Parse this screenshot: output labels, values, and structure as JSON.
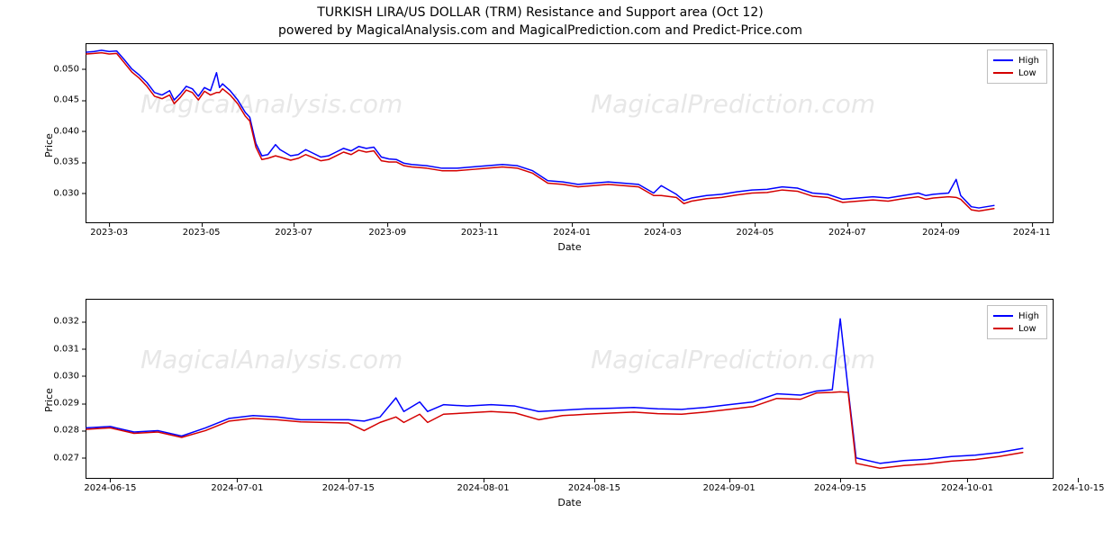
{
  "titles": {
    "main": "TURKISH LIRA/US DOLLAR (TRM) Resistance and Support area (Oct 12)",
    "sub": "powered by MagicalAnalysis.com and MagicalPrediction.com and Predict-Price.com"
  },
  "colors": {
    "high": "#0000ff",
    "low": "#d40000",
    "axis": "#000000",
    "legend_border": "#bfbfbf",
    "background": "#ffffff",
    "watermark": "rgba(120,120,120,0.18)"
  },
  "legend": {
    "high_label": "High",
    "low_label": "Low"
  },
  "watermarks": {
    "left": "MagicalAnalysis.com",
    "right": "MagicalPrediction.com"
  },
  "top_chart": {
    "type": "line",
    "ylabel": "Price",
    "xlabel": "Date",
    "label_fontsize": 11,
    "line_width": 1.5,
    "ylim": [
      0.025,
      0.054
    ],
    "yticks": [
      {
        "v": 0.03,
        "label": "0.030"
      },
      {
        "v": 0.035,
        "label": "0.035"
      },
      {
        "v": 0.04,
        "label": "0.040"
      },
      {
        "v": 0.045,
        "label": "0.045"
      },
      {
        "v": 0.05,
        "label": "0.050"
      }
    ],
    "xlim": [
      0,
      640
    ],
    "xticks": [
      {
        "v": 15,
        "label": "2023-03"
      },
      {
        "v": 76,
        "label": "2023-05"
      },
      {
        "v": 137,
        "label": "2023-07"
      },
      {
        "v": 199,
        "label": "2023-09"
      },
      {
        "v": 260,
        "label": "2023-11"
      },
      {
        "v": 321,
        "label": "2024-01"
      },
      {
        "v": 381,
        "label": "2024-03"
      },
      {
        "v": 442,
        "label": "2024-05"
      },
      {
        "v": 503,
        "label": "2024-07"
      },
      {
        "v": 565,
        "label": "2024-09"
      },
      {
        "v": 625,
        "label": "2024-11"
      }
    ],
    "series_high": [
      [
        0,
        0.0527
      ],
      [
        5,
        0.0528
      ],
      [
        10,
        0.053
      ],
      [
        15,
        0.0528
      ],
      [
        20,
        0.0529
      ],
      [
        25,
        0.0515
      ],
      [
        30,
        0.05
      ],
      [
        35,
        0.049
      ],
      [
        40,
        0.0478
      ],
      [
        45,
        0.0462
      ],
      [
        50,
        0.0458
      ],
      [
        55,
        0.0465
      ],
      [
        58,
        0.045
      ],
      [
        62,
        0.046
      ],
      [
        66,
        0.0472
      ],
      [
        70,
        0.0468
      ],
      [
        74,
        0.0456
      ],
      [
        78,
        0.047
      ],
      [
        82,
        0.0465
      ],
      [
        86,
        0.0494
      ],
      [
        88,
        0.047
      ],
      [
        90,
        0.0476
      ],
      [
        95,
        0.0465
      ],
      [
        100,
        0.045
      ],
      [
        105,
        0.043
      ],
      [
        108,
        0.0422
      ],
      [
        112,
        0.038
      ],
      [
        116,
        0.036
      ],
      [
        120,
        0.0362
      ],
      [
        125,
        0.0378
      ],
      [
        128,
        0.037
      ],
      [
        135,
        0.036
      ],
      [
        140,
        0.0362
      ],
      [
        145,
        0.037
      ],
      [
        150,
        0.0364
      ],
      [
        155,
        0.0358
      ],
      [
        160,
        0.036
      ],
      [
        165,
        0.0366
      ],
      [
        170,
        0.0372
      ],
      [
        175,
        0.0368
      ],
      [
        180,
        0.0375
      ],
      [
        185,
        0.0372
      ],
      [
        190,
        0.0374
      ],
      [
        195,
        0.0358
      ],
      [
        200,
        0.0355
      ],
      [
        205,
        0.0354
      ],
      [
        210,
        0.0348
      ],
      [
        215,
        0.0346
      ],
      [
        225,
        0.0344
      ],
      [
        235,
        0.034
      ],
      [
        245,
        0.034
      ],
      [
        255,
        0.0342
      ],
      [
        265,
        0.0344
      ],
      [
        275,
        0.0346
      ],
      [
        285,
        0.0344
      ],
      [
        295,
        0.0336
      ],
      [
        305,
        0.032
      ],
      [
        315,
        0.0318
      ],
      [
        325,
        0.0314
      ],
      [
        335,
        0.0316
      ],
      [
        345,
        0.0318
      ],
      [
        355,
        0.0316
      ],
      [
        365,
        0.0314
      ],
      [
        375,
        0.03
      ],
      [
        380,
        0.0312
      ],
      [
        390,
        0.0298
      ],
      [
        395,
        0.0288
      ],
      [
        400,
        0.0292
      ],
      [
        410,
        0.0296
      ],
      [
        420,
        0.0298
      ],
      [
        430,
        0.0302
      ],
      [
        440,
        0.0305
      ],
      [
        450,
        0.0306
      ],
      [
        460,
        0.031
      ],
      [
        470,
        0.0308
      ],
      [
        480,
        0.03
      ],
      [
        490,
        0.0298
      ],
      [
        500,
        0.029
      ],
      [
        510,
        0.0292
      ],
      [
        520,
        0.0294
      ],
      [
        530,
        0.0292
      ],
      [
        540,
        0.0296
      ],
      [
        550,
        0.03
      ],
      [
        555,
        0.0296
      ],
      [
        560,
        0.0298
      ],
      [
        570,
        0.03
      ],
      [
        575,
        0.0322
      ],
      [
        578,
        0.0296
      ],
      [
        585,
        0.0278
      ],
      [
        590,
        0.0276
      ],
      [
        595,
        0.0278
      ],
      [
        600,
        0.028
      ]
    ],
    "series_low": [
      [
        0,
        0.0524
      ],
      [
        5,
        0.0525
      ],
      [
        10,
        0.0526
      ],
      [
        15,
        0.0524
      ],
      [
        20,
        0.0525
      ],
      [
        25,
        0.051
      ],
      [
        30,
        0.0495
      ],
      [
        35,
        0.0485
      ],
      [
        40,
        0.0472
      ],
      [
        45,
        0.0456
      ],
      [
        50,
        0.0452
      ],
      [
        55,
        0.0458
      ],
      [
        58,
        0.0444
      ],
      [
        62,
        0.0454
      ],
      [
        66,
        0.0466
      ],
      [
        70,
        0.0462
      ],
      [
        74,
        0.045
      ],
      [
        78,
        0.0464
      ],
      [
        82,
        0.0458
      ],
      [
        86,
        0.0462
      ],
      [
        88,
        0.0462
      ],
      [
        90,
        0.0468
      ],
      [
        95,
        0.0458
      ],
      [
        100,
        0.0444
      ],
      [
        105,
        0.0424
      ],
      [
        108,
        0.0416
      ],
      [
        112,
        0.0374
      ],
      [
        116,
        0.0354
      ],
      [
        120,
        0.0356
      ],
      [
        125,
        0.036
      ],
      [
        128,
        0.0358
      ],
      [
        135,
        0.0353
      ],
      [
        140,
        0.0356
      ],
      [
        145,
        0.0362
      ],
      [
        150,
        0.0357
      ],
      [
        155,
        0.0352
      ],
      [
        160,
        0.0354
      ],
      [
        165,
        0.036
      ],
      [
        170,
        0.0366
      ],
      [
        175,
        0.0362
      ],
      [
        180,
        0.0369
      ],
      [
        185,
        0.0366
      ],
      [
        190,
        0.0368
      ],
      [
        195,
        0.0352
      ],
      [
        200,
        0.035
      ],
      [
        205,
        0.035
      ],
      [
        210,
        0.0344
      ],
      [
        215,
        0.0342
      ],
      [
        225,
        0.034
      ],
      [
        235,
        0.0336
      ],
      [
        245,
        0.0336
      ],
      [
        255,
        0.0338
      ],
      [
        265,
        0.034
      ],
      [
        275,
        0.0342
      ],
      [
        285,
        0.034
      ],
      [
        295,
        0.0332
      ],
      [
        305,
        0.0316
      ],
      [
        315,
        0.0314
      ],
      [
        325,
        0.031
      ],
      [
        335,
        0.0312
      ],
      [
        345,
        0.0314
      ],
      [
        355,
        0.0312
      ],
      [
        365,
        0.031
      ],
      [
        375,
        0.0296
      ],
      [
        380,
        0.0296
      ],
      [
        390,
        0.0293
      ],
      [
        395,
        0.0283
      ],
      [
        400,
        0.0287
      ],
      [
        410,
        0.0291
      ],
      [
        420,
        0.0293
      ],
      [
        430,
        0.0297
      ],
      [
        440,
        0.03
      ],
      [
        450,
        0.0301
      ],
      [
        460,
        0.0305
      ],
      [
        470,
        0.0303
      ],
      [
        480,
        0.0295
      ],
      [
        490,
        0.0293
      ],
      [
        500,
        0.0285
      ],
      [
        510,
        0.0287
      ],
      [
        520,
        0.0289
      ],
      [
        530,
        0.0287
      ],
      [
        540,
        0.0291
      ],
      [
        550,
        0.0294
      ],
      [
        555,
        0.029
      ],
      [
        560,
        0.0292
      ],
      [
        570,
        0.0294
      ],
      [
        575,
        0.0293
      ],
      [
        578,
        0.029
      ],
      [
        585,
        0.0273
      ],
      [
        590,
        0.0271
      ],
      [
        595,
        0.0273
      ],
      [
        600,
        0.0275
      ]
    ]
  },
  "bottom_chart": {
    "type": "line",
    "ylabel": "Price",
    "xlabel": "Date",
    "label_fontsize": 11,
    "line_width": 1.5,
    "ylim": [
      0.0262,
      0.0328
    ],
    "yticks": [
      {
        "v": 0.027,
        "label": "0.027"
      },
      {
        "v": 0.028,
        "label": "0.028"
      },
      {
        "v": 0.029,
        "label": "0.029"
      },
      {
        "v": 0.03,
        "label": "0.030"
      },
      {
        "v": 0.031,
        "label": "0.031"
      },
      {
        "v": 0.032,
        "label": "0.032"
      }
    ],
    "xlim": [
      0,
      122
    ],
    "xticks": [
      {
        "v": 3,
        "label": "2024-06-15"
      },
      {
        "v": 19,
        "label": "2024-07-01"
      },
      {
        "v": 33,
        "label": "2024-07-15"
      },
      {
        "v": 50,
        "label": "2024-08-01"
      },
      {
        "v": 64,
        "label": "2024-08-15"
      },
      {
        "v": 81,
        "label": "2024-09-01"
      },
      {
        "v": 95,
        "label": "2024-09-15"
      },
      {
        "v": 111,
        "label": "2024-10-01"
      },
      {
        "v": 125,
        "label": "2024-10-15"
      }
    ],
    "series_high": [
      [
        0,
        0.0281
      ],
      [
        3,
        0.02815
      ],
      [
        6,
        0.02795
      ],
      [
        9,
        0.028
      ],
      [
        12,
        0.0278
      ],
      [
        15,
        0.0281
      ],
      [
        18,
        0.02845
      ],
      [
        21,
        0.02855
      ],
      [
        24,
        0.0285
      ],
      [
        27,
        0.0284
      ],
      [
        30,
        0.0284
      ],
      [
        33,
        0.0284
      ],
      [
        35,
        0.02835
      ],
      [
        37,
        0.0285
      ],
      [
        39,
        0.0292
      ],
      [
        40,
        0.0287
      ],
      [
        42,
        0.02905
      ],
      [
        43,
        0.0287
      ],
      [
        45,
        0.02895
      ],
      [
        48,
        0.0289
      ],
      [
        51,
        0.02895
      ],
      [
        54,
        0.0289
      ],
      [
        57,
        0.0287
      ],
      [
        60,
        0.02875
      ],
      [
        63,
        0.0288
      ],
      [
        66,
        0.02882
      ],
      [
        69,
        0.02885
      ],
      [
        72,
        0.0288
      ],
      [
        75,
        0.02878
      ],
      [
        78,
        0.02885
      ],
      [
        81,
        0.02895
      ],
      [
        84,
        0.02905
      ],
      [
        87,
        0.02935
      ],
      [
        90,
        0.0293
      ],
      [
        92,
        0.02945
      ],
      [
        94,
        0.0295
      ],
      [
        95,
        0.0321
      ],
      [
        96,
        0.0295
      ],
      [
        97,
        0.027
      ],
      [
        100,
        0.0268
      ],
      [
        103,
        0.0269
      ],
      [
        106,
        0.02695
      ],
      [
        109,
        0.02705
      ],
      [
        112,
        0.0271
      ],
      [
        115,
        0.0272
      ],
      [
        118,
        0.02735
      ]
    ],
    "series_low": [
      [
        0,
        0.02805
      ],
      [
        3,
        0.0281
      ],
      [
        6,
        0.0279
      ],
      [
        9,
        0.02795
      ],
      [
        12,
        0.02775
      ],
      [
        15,
        0.028
      ],
      [
        18,
        0.02835
      ],
      [
        21,
        0.02845
      ],
      [
        24,
        0.0284
      ],
      [
        27,
        0.02832
      ],
      [
        30,
        0.0283
      ],
      [
        33,
        0.02828
      ],
      [
        35,
        0.028
      ],
      [
        37,
        0.0283
      ],
      [
        39,
        0.0285
      ],
      [
        40,
        0.0283
      ],
      [
        42,
        0.0286
      ],
      [
        43,
        0.0283
      ],
      [
        45,
        0.0286
      ],
      [
        48,
        0.02865
      ],
      [
        51,
        0.0287
      ],
      [
        54,
        0.02865
      ],
      [
        57,
        0.0284
      ],
      [
        60,
        0.02855
      ],
      [
        63,
        0.0286
      ],
      [
        66,
        0.02864
      ],
      [
        69,
        0.02868
      ],
      [
        72,
        0.02862
      ],
      [
        75,
        0.0286
      ],
      [
        78,
        0.02868
      ],
      [
        81,
        0.02878
      ],
      [
        84,
        0.02888
      ],
      [
        87,
        0.02918
      ],
      [
        90,
        0.02915
      ],
      [
        92,
        0.02938
      ],
      [
        94,
        0.0294
      ],
      [
        95,
        0.02942
      ],
      [
        96,
        0.0294
      ],
      [
        97,
        0.0268
      ],
      [
        100,
        0.02662
      ],
      [
        103,
        0.02672
      ],
      [
        106,
        0.02678
      ],
      [
        109,
        0.02688
      ],
      [
        112,
        0.02694
      ],
      [
        115,
        0.02705
      ],
      [
        118,
        0.0272
      ]
    ]
  }
}
